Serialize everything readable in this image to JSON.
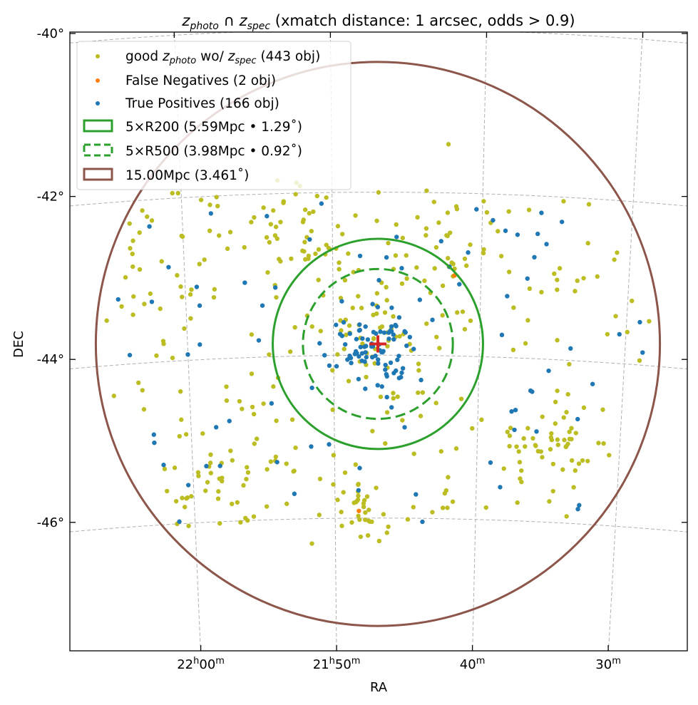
{
  "chart_data": {
    "type": "scatter",
    "title": {
      "z1": "z",
      "sub1": "photo",
      "cap": " ∩ ",
      "z2": "z",
      "sub2": "spec",
      "rest": " (xmatch distance: 1 arcsec, odds > 0.9)"
    },
    "xlabel": "RA",
    "ylabel": "DEC",
    "xlim_deg": [
      331.7,
      320.3
    ],
    "ylim_deg": [
      -47.6,
      -40.0
    ],
    "grid": true,
    "legend_placement": "upper-left",
    "x_ticks": [
      {
        "ra_deg": 330.0,
        "hours": "22",
        "h": "h",
        "minutes": "00",
        "m": "m"
      },
      {
        "ra_deg": 327.5,
        "hours": "21",
        "h": "h",
        "minutes": "50",
        "m": "m"
      },
      {
        "ra_deg": 325.0,
        "hours": "",
        "h": "",
        "minutes": "40",
        "m": "m"
      },
      {
        "ra_deg": 322.5,
        "hours": "",
        "h": "",
        "minutes": "30",
        "m": "m"
      }
    ],
    "y_ticks": [
      {
        "dec_deg": -40,
        "label": "-40°"
      },
      {
        "dec_deg": -42,
        "label": "-42°"
      },
      {
        "dec_deg": -44,
        "label": "-44°"
      },
      {
        "dec_deg": -46,
        "label": "-46°"
      }
    ],
    "center": {
      "ra_deg": 326.74,
      "dec_deg": -43.81,
      "marker": "plus",
      "color": "#d62728"
    },
    "series": [
      {
        "name": "good_zphoto",
        "legend": {
          "a": "good ",
          "z1": "z",
          "sub1": "photo",
          "b": " wo/ ",
          "z2": "z",
          "sub2": "spec",
          "c": " (443 obj)"
        },
        "count": 443,
        "color": "#bcbd22",
        "groups": [
          {
            "ra": 326.74,
            "dec": -43.81,
            "sigma": 0.4,
            "n": 55
          },
          {
            "ra": 323.46,
            "dec": -45.06,
            "sigma": 0.28,
            "n": 45
          },
          {
            "ra": 327.0,
            "dec": -45.84,
            "sigma": 0.22,
            "n": 30
          },
          {
            "ra": 328.18,
            "dec": -42.45,
            "sigma": 0.3,
            "n": 40
          },
          {
            "ra": 330.41,
            "dec": -43.0,
            "sigma": 0.55,
            "n": 35
          },
          {
            "ra": 329.36,
            "dec": -45.36,
            "sigma": 0.45,
            "n": 45
          },
          {
            "ra": 325.56,
            "dec": -42.45,
            "sigma": 0.4,
            "n": 30
          },
          {
            "ra": 326.74,
            "dec": -44.0,
            "sigma": 0,
            "n": 163,
            "uniform": [
              -42.0,
              -46.0
            ]
          }
        ]
      },
      {
        "name": "false_negatives",
        "legend": "False Negatives (2 obj)",
        "count": 2,
        "color": "#ff7f0e",
        "points": [
          [
            325.33,
            -42.97
          ],
          [
            327.09,
            -45.86
          ]
        ]
      },
      {
        "name": "true_positives",
        "legend": "True Positives (166 obj)",
        "count": 166,
        "color": "#1f77b4",
        "groups": [
          {
            "ra": 326.74,
            "dec": -43.9,
            "sigma": 0.28,
            "n": 85
          },
          {
            "ra": 326.74,
            "dec": -44.0,
            "sigma": 0,
            "n": 81,
            "uniform": [
              -42.0,
              -46.0
            ]
          }
        ]
      }
    ],
    "circles": [
      {
        "name": "r200",
        "legend": "5×R200 (5.59Mpc • 1.29˚)",
        "radius_deg": 1.29,
        "color": "#2ca02c",
        "style": "solid"
      },
      {
        "name": "r500",
        "legend": "5×R500 (3.98Mpc • 0.92˚)",
        "radius_deg": 0.92,
        "color": "#2ca02c",
        "style": "dashed"
      },
      {
        "name": "r15mpc",
        "legend": "15.00Mpc (3.461˚)",
        "radius_deg": 3.461,
        "color": "#8c564b",
        "style": "solid"
      }
    ]
  }
}
